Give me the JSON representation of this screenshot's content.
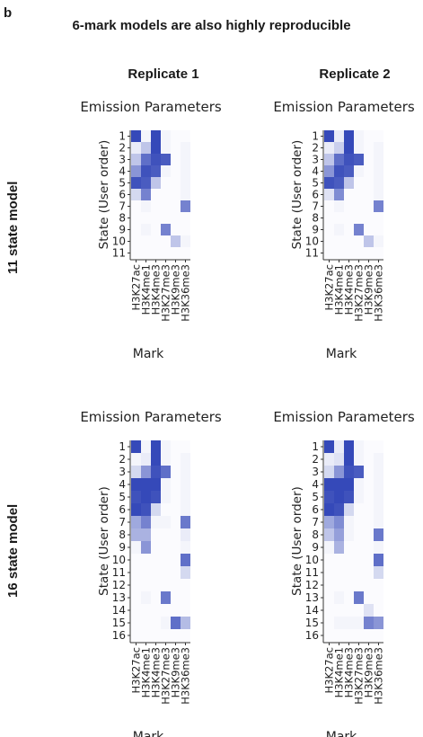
{
  "panel_label": "b",
  "figure_title": "6-mark models are also highly reproducible",
  "column_titles": [
    "Replicate 1",
    "Replicate 2"
  ],
  "row_titles": [
    "11 state model",
    "16 state model"
  ],
  "color_max": "#2a3fb5",
  "chart_data": [
    {
      "type": "heatmap",
      "title": "Emission Parameters",
      "xlabel": "Mark",
      "ylabel": "State (User order)",
      "x": [
        "H3K27ac",
        "H3K4me1",
        "H3K4me3",
        "H3K27me3",
        "H3K9me3",
        "H3K36me3"
      ],
      "y": [
        "1",
        "2",
        "3",
        "4",
        "5",
        "6",
        "7",
        "8",
        "9",
        "10",
        "11"
      ],
      "values": [
        [
          0.95,
          0.05,
          0.95,
          0.05,
          0.02,
          0.02
        ],
        [
          0.1,
          0.3,
          0.95,
          0.05,
          0.02,
          0.05
        ],
        [
          0.3,
          0.75,
          0.9,
          0.85,
          0.02,
          0.05
        ],
        [
          0.55,
          0.9,
          0.85,
          0.05,
          0.02,
          0.05
        ],
        [
          0.9,
          0.85,
          0.3,
          0.02,
          0.02,
          0.05
        ],
        [
          0.2,
          0.65,
          0.02,
          0.02,
          0.02,
          0.05
        ],
        [
          0.02,
          0.05,
          0.02,
          0.02,
          0.02,
          0.65
        ],
        [
          0.02,
          0.02,
          0.02,
          0.02,
          0.02,
          0.02
        ],
        [
          0.02,
          0.05,
          0.02,
          0.65,
          0.02,
          0.02
        ],
        [
          0.02,
          0.02,
          0.02,
          0.02,
          0.3,
          0.05
        ],
        [
          0.02,
          0.02,
          0.02,
          0.02,
          0.02,
          0.02
        ]
      ]
    },
    {
      "type": "heatmap",
      "title": "Emission Parameters",
      "xlabel": "Mark",
      "ylabel": "State (User order)",
      "x": [
        "H3K27ac",
        "H3K4me1",
        "H3K4me3",
        "H3K27me3",
        "H3K9me3",
        "H3K36me3"
      ],
      "y": [
        "1",
        "2",
        "3",
        "4",
        "5",
        "6",
        "7",
        "8",
        "9",
        "10",
        "11"
      ],
      "values": [
        [
          0.95,
          0.1,
          0.95,
          0.05,
          0.02,
          0.02
        ],
        [
          0.1,
          0.25,
          0.95,
          0.05,
          0.02,
          0.05
        ],
        [
          0.3,
          0.75,
          0.9,
          0.85,
          0.02,
          0.05
        ],
        [
          0.55,
          0.9,
          0.85,
          0.05,
          0.02,
          0.05
        ],
        [
          0.9,
          0.85,
          0.3,
          0.02,
          0.02,
          0.05
        ],
        [
          0.15,
          0.6,
          0.02,
          0.02,
          0.02,
          0.05
        ],
        [
          0.02,
          0.05,
          0.02,
          0.02,
          0.02,
          0.65
        ],
        [
          0.02,
          0.02,
          0.02,
          0.02,
          0.02,
          0.02
        ],
        [
          0.02,
          0.05,
          0.02,
          0.65,
          0.02,
          0.02
        ],
        [
          0.02,
          0.02,
          0.02,
          0.02,
          0.3,
          0.05
        ],
        [
          0.02,
          0.02,
          0.02,
          0.02,
          0.02,
          0.02
        ]
      ]
    },
    {
      "type": "heatmap",
      "title": "Emission Parameters",
      "xlabel": "Mark",
      "ylabel": "State (User order)",
      "x": [
        "H3K27ac",
        "H3K4me1",
        "H3K4me3",
        "H3K27me3",
        "H3K9me3",
        "H3K36me3"
      ],
      "y": [
        "1",
        "2",
        "3",
        "4",
        "5",
        "6",
        "7",
        "8",
        "9",
        "10",
        "11",
        "12",
        "13",
        "14",
        "15",
        "16"
      ],
      "values": [
        [
          0.95,
          0.05,
          0.95,
          0.05,
          0.02,
          0.02
        ],
        [
          0.05,
          0.1,
          0.95,
          0.05,
          0.02,
          0.05
        ],
        [
          0.2,
          0.55,
          0.9,
          0.75,
          0.02,
          0.05
        ],
        [
          0.95,
          0.95,
          0.95,
          0.05,
          0.02,
          0.05
        ],
        [
          0.9,
          0.95,
          0.9,
          0.05,
          0.02,
          0.05
        ],
        [
          0.95,
          0.9,
          0.2,
          0.02,
          0.02,
          0.05
        ],
        [
          0.45,
          0.65,
          0.05,
          0.05,
          0.02,
          0.7
        ],
        [
          0.4,
          0.4,
          0.02,
          0.02,
          0.02,
          0.1
        ],
        [
          0.05,
          0.55,
          0.02,
          0.02,
          0.02,
          0.05
        ],
        [
          0.02,
          0.02,
          0.02,
          0.02,
          0.02,
          0.75
        ],
        [
          0.02,
          0.02,
          0.02,
          0.02,
          0.02,
          0.2
        ],
        [
          0.02,
          0.02,
          0.02,
          0.02,
          0.02,
          0.02
        ],
        [
          0.02,
          0.05,
          0.02,
          0.7,
          0.02,
          0.02
        ],
        [
          0.02,
          0.02,
          0.02,
          0.02,
          0.02,
          0.02
        ],
        [
          0.02,
          0.02,
          0.02,
          0.05,
          0.75,
          0.35
        ],
        [
          0.02,
          0.02,
          0.02,
          0.02,
          0.02,
          0.02
        ]
      ]
    },
    {
      "type": "heatmap",
      "title": "Emission Parameters",
      "xlabel": "Mark",
      "ylabel": "State (User order)",
      "x": [
        "H3K27ac",
        "H3K4me1",
        "H3K4me3",
        "H3K27me3",
        "H3K9me3",
        "H3K36me3"
      ],
      "y": [
        "1",
        "2",
        "3",
        "4",
        "5",
        "6",
        "7",
        "8",
        "9",
        "10",
        "11",
        "12",
        "13",
        "14",
        "15",
        "16"
      ],
      "values": [
        [
          0.95,
          0.1,
          0.95,
          0.05,
          0.02,
          0.02
        ],
        [
          0.1,
          0.15,
          0.95,
          0.05,
          0.02,
          0.05
        ],
        [
          0.2,
          0.55,
          0.9,
          0.85,
          0.02,
          0.05
        ],
        [
          0.95,
          0.95,
          0.95,
          0.05,
          0.02,
          0.05
        ],
        [
          0.9,
          0.95,
          0.9,
          0.05,
          0.02,
          0.05
        ],
        [
          0.95,
          0.9,
          0.2,
          0.02,
          0.02,
          0.05
        ],
        [
          0.45,
          0.6,
          0.05,
          0.02,
          0.02,
          0.05
        ],
        [
          0.3,
          0.5,
          0.05,
          0.02,
          0.02,
          0.7
        ],
        [
          0.05,
          0.4,
          0.02,
          0.02,
          0.02,
          0.05
        ],
        [
          0.02,
          0.02,
          0.02,
          0.02,
          0.02,
          0.75
        ],
        [
          0.02,
          0.02,
          0.02,
          0.02,
          0.02,
          0.2
        ],
        [
          0.02,
          0.02,
          0.02,
          0.02,
          0.02,
          0.02
        ],
        [
          0.02,
          0.05,
          0.02,
          0.7,
          0.02,
          0.02
        ],
        [
          0.02,
          0.02,
          0.02,
          0.02,
          0.15,
          0.02
        ],
        [
          0.02,
          0.05,
          0.05,
          0.05,
          0.65,
          0.55
        ],
        [
          0.02,
          0.02,
          0.02,
          0.02,
          0.02,
          0.02
        ]
      ]
    }
  ]
}
